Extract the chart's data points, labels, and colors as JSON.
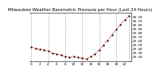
{
  "title": "Milwaukee Weather Barometric Pressure per Hour (Last 24 Hours)",
  "hours": [
    0,
    1,
    2,
    3,
    4,
    5,
    6,
    7,
    8,
    9,
    10,
    11,
    12,
    13,
    14,
    15,
    16,
    17,
    18,
    19,
    20,
    21,
    22,
    23
  ],
  "pressure": [
    29.45,
    29.42,
    29.4,
    29.38,
    29.35,
    29.3,
    29.28,
    29.25,
    29.22,
    29.2,
    29.22,
    29.2,
    29.18,
    29.15,
    29.22,
    29.28,
    29.38,
    29.5,
    29.62,
    29.75,
    29.88,
    30.0,
    30.12,
    30.22
  ],
  "ylim_min": 29.1,
  "ylim_max": 30.3,
  "yticks": [
    29.2,
    29.3,
    29.4,
    29.5,
    29.6,
    29.7,
    29.8,
    29.9,
    30.0,
    30.1,
    30.2
  ],
  "ytick_labels": [
    "29.20",
    "29.30",
    "29.40",
    "29.50",
    "29.60",
    "29.70",
    "29.80",
    "29.90",
    "30.00",
    "30.10",
    "30.20"
  ],
  "bg_color": "#ffffff",
  "line_color": "#ff0000",
  "dot_color": "#000000",
  "grid_color": "#999999",
  "title_fontsize": 4.0,
  "tick_fontsize": 3.0,
  "vgrid_positions": [
    0,
    4,
    8,
    12,
    16,
    20,
    23
  ],
  "xtick_step": 2
}
